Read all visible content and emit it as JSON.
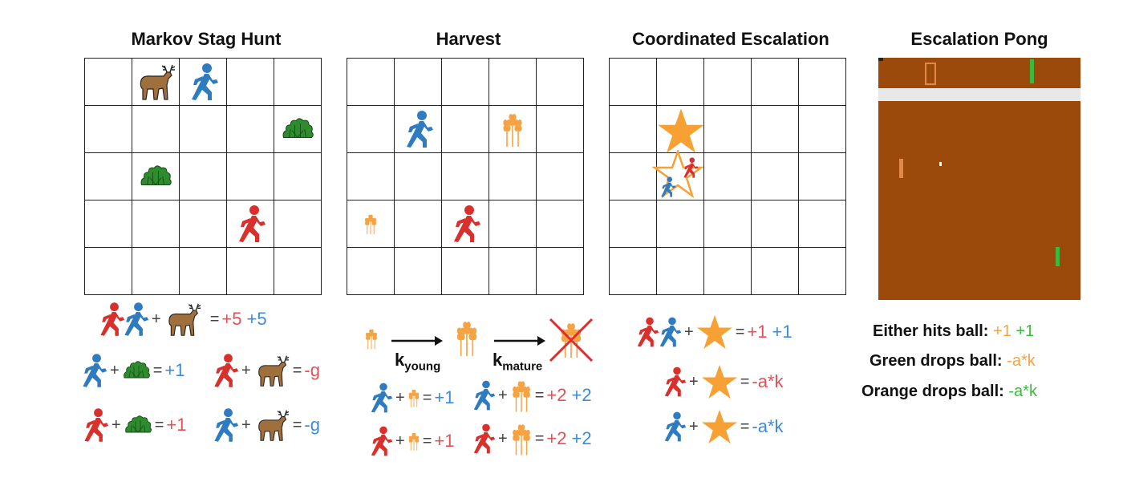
{
  "panels": {
    "stag": {
      "title": "Markov Stag Hunt"
    },
    "harvest": {
      "title": "Harvest"
    },
    "escalation": {
      "title": "Coordinated Escalation"
    },
    "pong": {
      "title": "Escalation Pong"
    }
  },
  "stag_rewards": {
    "r1_red": "+5",
    "r1_blue": "+5",
    "r2a_val": "+1",
    "r2b_val": "-g",
    "r3a_val": "+1",
    "r3b_val": "-g"
  },
  "harvest_rewards": {
    "k_young": "k",
    "k_young_sub": "young",
    "k_mature": "k",
    "k_mature_sub": "mature",
    "r1a_val": "+1",
    "r1b_red": "+2",
    "r1b_blue": "+2",
    "r2a_val": "+1",
    "r2b_red": "+2",
    "r2b_blue": "+2"
  },
  "escalation_rewards": {
    "r1_red": "+1",
    "r1_blue": "+1",
    "r2_val": "-a*k",
    "r3_val": "-a*k"
  },
  "pong_rewards": {
    "l1_label": "Either hits ball:",
    "l1_orange": "+1",
    "l1_green": "+1",
    "l2_label": "Green drops ball:",
    "l2_val": "-a*k",
    "l3_label": "Orange drops ball:",
    "l3_val": "-a*k"
  },
  "colors": {
    "red_agent": "#d9302c",
    "blue_agent": "#2f7bbf",
    "stag": "#a0703c",
    "bush": "#2e8b2e",
    "wheat": "#f5a343",
    "star": "#f7a033",
    "pong_bg": "#9c4a0c",
    "pong_band": "#e8e8e8"
  },
  "icons": [
    "red-runner-icon",
    "blue-runner-icon",
    "stag-icon",
    "bush-icon",
    "wheat-icon",
    "star-icon"
  ]
}
